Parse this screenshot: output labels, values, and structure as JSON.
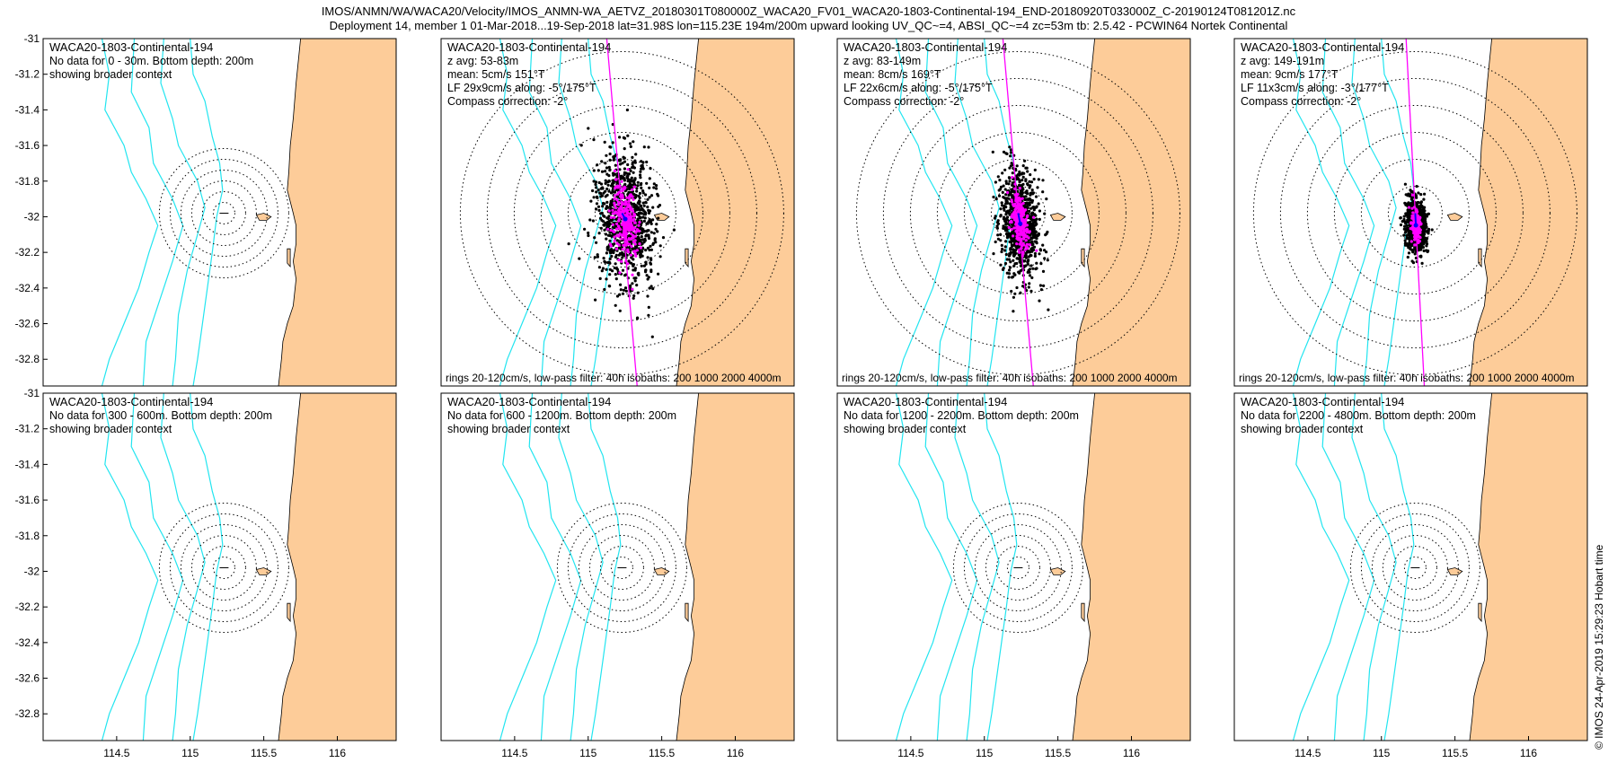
{
  "figure": {
    "title_line1": "IMOS/ANMN/WA/WACA20/Velocity/IMOS_ANMN-WA_AETVZ_20180301T080000Z_WACA20_FV01_WACA20-1803-Continental-194_END-20180920T033000Z_C-20190124T081201Z.nc",
    "title_line2": "Deployment 14, member 1 01-Mar-2018...19-Sep-2018 lat=31.98S lon=115.23E 194m/200m upward looking UV_QC~=4, ABSI_QC~=4 zc=53m tb: 2.5.42 - PCWIN64 Nortek Continental",
    "stamp": "© IMOS 24-Apr-2019 15:29:23 Hobart time"
  },
  "colors": {
    "land": "#fdcc99",
    "isobath": "#22e5f0",
    "scatter": "#000000",
    "lowpass": "#ff00ff",
    "axis_line": "#ff00ff",
    "mean": "#0000ff",
    "rings": "#000000"
  },
  "chart_data": {
    "type": "scatter",
    "xlim": [
      114.0,
      116.4
    ],
    "ylim": [
      -32.95,
      -31.0
    ],
    "xticks": [
      "114.5",
      "115",
      "115.5",
      "116"
    ],
    "yticks": [
      "-31",
      "-31.2",
      "-31.4",
      "-31.6",
      "-31.8",
      "-32",
      "-32.2",
      "-32.4",
      "-32.6",
      "-32.8"
    ],
    "mooring": {
      "lon": 115.23,
      "lat": -31.98
    },
    "ring_speeds_cms": [
      20,
      40,
      60,
      80,
      100,
      120
    ],
    "footer": "rings 20-120cm/s, low-pass filter: 40h isobaths: 200 1000 2000 4000m",
    "panels": [
      {
        "has_data": false,
        "title": "WACA20-1803-Continental-194",
        "lines": [
          "No data for 0 - 30m. Bottom depth: 200m",
          "showing broader context"
        ]
      },
      {
        "has_data": true,
        "title": "WACA20-1803-Continental-194",
        "lines": [
          "z avg: 53-83m",
          "mean: 5cm/s 151°T",
          "LF 29x9cm/s along: -5°/175°T",
          "Compass correction: -2°"
        ],
        "mean_speed_cms": 5,
        "mean_dir_degT": 151,
        "lf_major_cms": 29,
        "lf_minor_cms": 9,
        "along_dir_degT": 175
      },
      {
        "has_data": true,
        "title": "WACA20-1803-Continental-194",
        "lines": [
          "z avg: 83-149m",
          "mean: 8cm/s 169°T",
          "LF 22x6cm/s along: -5°/175°T",
          "Compass correction: -2°"
        ],
        "mean_speed_cms": 8,
        "mean_dir_degT": 169,
        "lf_major_cms": 22,
        "lf_minor_cms": 6,
        "along_dir_degT": 175
      },
      {
        "has_data": true,
        "title": "WACA20-1803-Continental-194",
        "lines": [
          "z avg: 149-191m",
          "mean: 9cm/s 177°T",
          "LF 11x3cm/s along: -3°/177°T",
          "Compass correction: -2°"
        ],
        "mean_speed_cms": 9,
        "mean_dir_degT": 177,
        "lf_major_cms": 11,
        "lf_minor_cms": 3,
        "along_dir_degT": 177
      },
      {
        "has_data": false,
        "title": "WACA20-1803-Continental-194",
        "lines": [
          "No data for 300 - 600m. Bottom depth: 200m",
          "showing broader context"
        ]
      },
      {
        "has_data": false,
        "title": "WACA20-1803-Continental-194",
        "lines": [
          "No data for 600 - 1200m. Bottom depth: 200m",
          "showing broader context"
        ]
      },
      {
        "has_data": false,
        "title": "WACA20-1803-Continental-194",
        "lines": [
          "No data for 1200 - 2200m. Bottom depth: 200m",
          "showing broader context"
        ]
      },
      {
        "has_data": false,
        "title": "WACA20-1803-Continental-194",
        "lines": [
          "No data for 2200 - 4800m. Bottom depth: 200m",
          "showing broader context"
        ]
      }
    ]
  }
}
